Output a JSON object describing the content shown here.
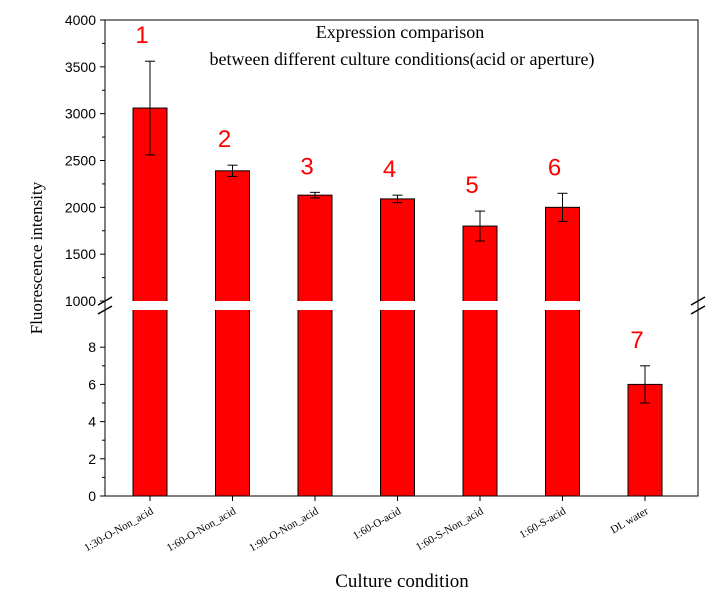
{
  "chart_data": {
    "type": "bar",
    "title_lines": [
      "Expression comparison",
      "between different culture conditions(acid or aperture)"
    ],
    "xlabel": "Culture condition",
    "ylabel": "Fluorescence intensity",
    "categories": [
      "1:30-O-Non_acid",
      "1:60-O-Non_acid",
      "1:90-O-Non_acid",
      "1:60-O-acid",
      "1:60-S-Non_acid",
      "1:60-S-acid",
      "DL water"
    ],
    "values": [
      3060,
      2390,
      2130,
      2090,
      1800,
      2000,
      6
    ],
    "errors": [
      500,
      60,
      30,
      40,
      160,
      150,
      1
    ],
    "bar_labels": [
      "1",
      "2",
      "3",
      "4",
      "5",
      "6",
      "7"
    ],
    "y_axis_broken": true,
    "upper_axis": {
      "ylim": [
        1000,
        4000
      ],
      "ticks": [
        1000,
        1500,
        2000,
        2500,
        3000,
        3500,
        4000
      ]
    },
    "lower_axis": {
      "ylim": [
        0,
        10
      ],
      "ticks": [
        0,
        2,
        4,
        6,
        8
      ]
    },
    "grid": false,
    "legend": "none",
    "bar_color": "#ff0000",
    "label_color": "#ff0000"
  }
}
